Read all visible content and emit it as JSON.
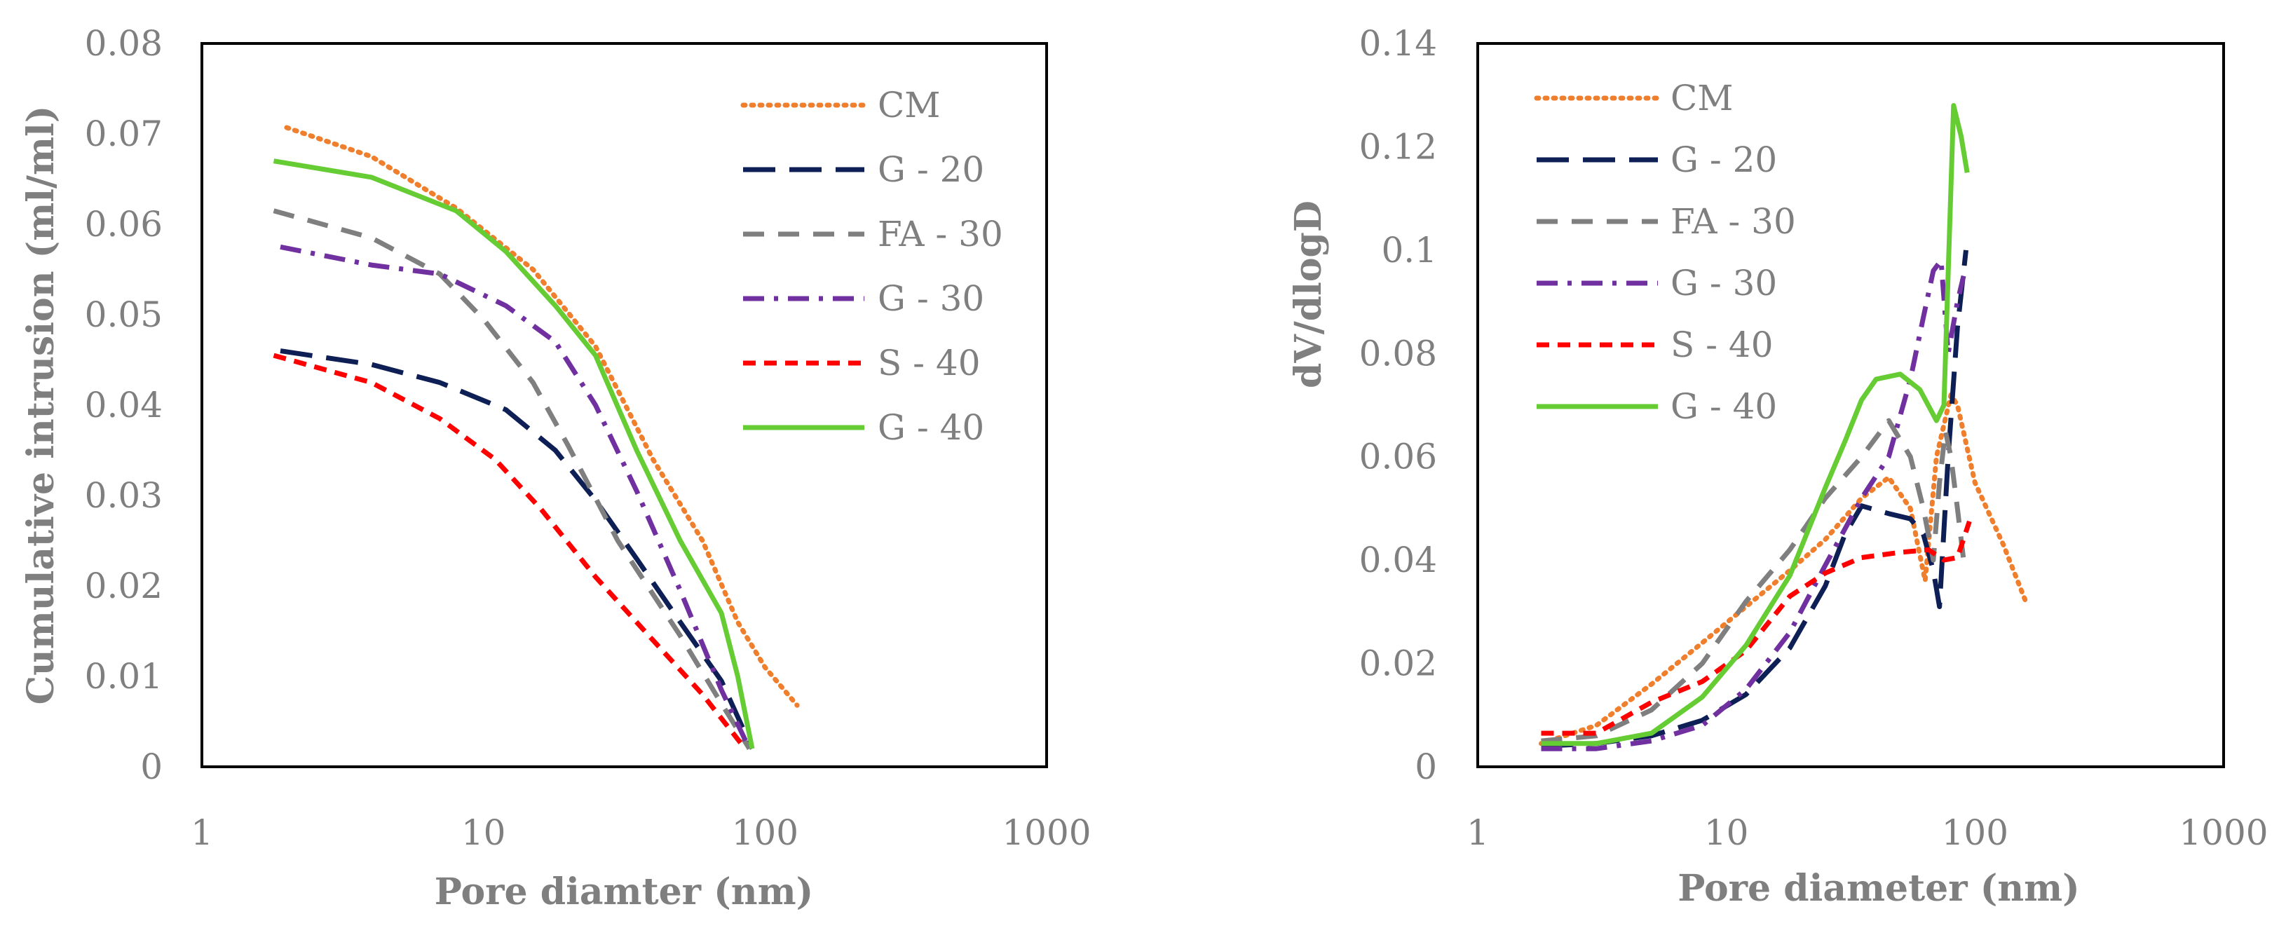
{
  "chart_data": [
    {
      "type": "line",
      "xscale": "log",
      "title": "",
      "xlabel": "Pore diamter (nm)",
      "ylabel": "Cumulative intrusion (ml/ml)",
      "xlim": [
        1,
        1000
      ],
      "ylim": [
        0,
        0.08
      ],
      "xticks": [
        1,
        10,
        100,
        1000
      ],
      "xtick_labels": [
        "1",
        "10",
        "100",
        "1000"
      ],
      "yticks": [
        0,
        0.01,
        0.02,
        0.03,
        0.04,
        0.05,
        0.06,
        0.07,
        0.08
      ],
      "ytick_labels": [
        "0",
        "0.01",
        "0.02",
        "0.03",
        "0.04",
        "0.05",
        "0.06",
        "0.07",
        "0.08"
      ],
      "legend_position": "top-right",
      "series": [
        {
          "name": "CM",
          "color": "#f07f2d",
          "style": "dotted",
          "points": [
            [
              2,
              0.0707
            ],
            [
              4,
              0.0675
            ],
            [
              8,
              0.0618
            ],
            [
              15,
              0.055
            ],
            [
              25,
              0.0465
            ],
            [
              40,
              0.034
            ],
            [
              60,
              0.025
            ],
            [
              80,
              0.016
            ],
            [
              100,
              0.011
            ],
            [
              130,
              0.0068
            ]
          ]
        },
        {
          "name": "G - 20",
          "color": "#0d1f55",
          "style": "long-dash",
          "points": [
            [
              1.9,
              0.046
            ],
            [
              4,
              0.0445
            ],
            [
              7,
              0.0425
            ],
            [
              12,
              0.0395
            ],
            [
              18,
              0.035
            ],
            [
              25,
              0.0295
            ],
            [
              35,
              0.023
            ],
            [
              50,
              0.016
            ],
            [
              70,
              0.0095
            ],
            [
              90,
              0.002
            ]
          ]
        },
        {
          "name": "FA - 30",
          "color": "#7f7f7f",
          "style": "dash",
          "points": [
            [
              1.8,
              0.0615
            ],
            [
              4,
              0.0585
            ],
            [
              7,
              0.0545
            ],
            [
              10,
              0.0495
            ],
            [
              15,
              0.0425
            ],
            [
              20,
              0.0355
            ],
            [
              30,
              0.025
            ],
            [
              50,
              0.0145
            ],
            [
              70,
              0.007
            ],
            [
              88,
              0.002
            ]
          ]
        },
        {
          "name": "G - 30",
          "color": "#7030a0",
          "style": "dash-dot",
          "points": [
            [
              1.9,
              0.0575
            ],
            [
              4,
              0.0555
            ],
            [
              7,
              0.0545
            ],
            [
              12,
              0.051
            ],
            [
              18,
              0.047
            ],
            [
              25,
              0.04
            ],
            [
              35,
              0.0305
            ],
            [
              50,
              0.0195
            ],
            [
              70,
              0.0085
            ],
            [
              88,
              0.002
            ]
          ]
        },
        {
          "name": "S - 40",
          "color": "#ff0000",
          "style": "short-dash",
          "points": [
            [
              1.8,
              0.0455
            ],
            [
              4,
              0.0425
            ],
            [
              7,
              0.0385
            ],
            [
              11,
              0.034
            ],
            [
              16,
              0.0285
            ],
            [
              25,
              0.021
            ],
            [
              40,
              0.014
            ],
            [
              60,
              0.008
            ],
            [
              85,
              0.002
            ]
          ]
        },
        {
          "name": "G - 40",
          "color": "#66cc33",
          "style": "solid",
          "points": [
            [
              1.8,
              0.067
            ],
            [
              4,
              0.0652
            ],
            [
              8,
              0.0615
            ],
            [
              12,
              0.057
            ],
            [
              18,
              0.051
            ],
            [
              25,
              0.0455
            ],
            [
              35,
              0.035
            ],
            [
              50,
              0.025
            ],
            [
              70,
              0.017
            ],
            [
              80,
              0.01
            ],
            [
              90,
              0.002
            ]
          ]
        }
      ]
    },
    {
      "type": "line",
      "xscale": "log",
      "title": "",
      "xlabel": "Pore diameter (nm)",
      "ylabel": "dV/dlogD",
      "xlim": [
        1,
        1000
      ],
      "ylim": [
        0,
        0.14
      ],
      "xticks": [
        1,
        10,
        100,
        1000
      ],
      "xtick_labels": [
        "1",
        "10",
        "100",
        "1000"
      ],
      "yticks": [
        0,
        0.02,
        0.04,
        0.06,
        0.08,
        0.1,
        0.12,
        0.14
      ],
      "ytick_labels": [
        "0",
        "0.02",
        "0.04",
        "0.06",
        "0.08",
        "0.1",
        "0.12",
        "0.14"
      ],
      "legend_position": "top-left",
      "series": [
        {
          "name": "CM",
          "color": "#f07f2d",
          "style": "dotted",
          "points": [
            [
              1.8,
              0.0045
            ],
            [
              3,
              0.008
            ],
            [
              5,
              0.016
            ],
            [
              8,
              0.024
            ],
            [
              12,
              0.031
            ],
            [
              18,
              0.038
            ],
            [
              25,
              0.044
            ],
            [
              35,
              0.052
            ],
            [
              45,
              0.056
            ],
            [
              55,
              0.05
            ],
            [
              63,
              0.036
            ],
            [
              70,
              0.06
            ],
            [
              80,
              0.072
            ],
            [
              85,
              0.07
            ],
            [
              100,
              0.055
            ],
            [
              130,
              0.043
            ],
            [
              160,
              0.032
            ]
          ]
        },
        {
          "name": "G - 20",
          "color": "#0d1f55",
          "style": "long-dash",
          "points": [
            [
              1.8,
              0.004
            ],
            [
              3,
              0.0045
            ],
            [
              5,
              0.006
            ],
            [
              8,
              0.009
            ],
            [
              12,
              0.014
            ],
            [
              18,
              0.023
            ],
            [
              25,
              0.035
            ],
            [
              30,
              0.045
            ],
            [
              35,
              0.0505
            ],
            [
              45,
              0.049
            ],
            [
              55,
              0.048
            ],
            [
              62,
              0.045
            ],
            [
              68,
              0.038
            ],
            [
              72,
              0.031
            ],
            [
              78,
              0.06
            ],
            [
              85,
              0.085
            ],
            [
              92,
              0.1
            ]
          ]
        },
        {
          "name": "FA - 30",
          "color": "#7f7f7f",
          "style": "dash",
          "points": [
            [
              1.8,
              0.005
            ],
            [
              3,
              0.006
            ],
            [
              5,
              0.011
            ],
            [
              8,
              0.02
            ],
            [
              12,
              0.032
            ],
            [
              18,
              0.042
            ],
            [
              25,
              0.052
            ],
            [
              35,
              0.06
            ],
            [
              45,
              0.067
            ],
            [
              55,
              0.06
            ],
            [
              62,
              0.05
            ],
            [
              68,
              0.04
            ],
            [
              72,
              0.055
            ],
            [
              76,
              0.065
            ],
            [
              80,
              0.06
            ],
            [
              85,
              0.05
            ],
            [
              90,
              0.04
            ]
          ]
        },
        {
          "name": "G - 30",
          "color": "#7030a0",
          "style": "dash-dot",
          "points": [
            [
              1.8,
              0.0035
            ],
            [
              3,
              0.0035
            ],
            [
              5,
              0.005
            ],
            [
              8,
              0.008
            ],
            [
              12,
              0.015
            ],
            [
              18,
              0.026
            ],
            [
              25,
              0.039
            ],
            [
              35,
              0.052
            ],
            [
              45,
              0.06
            ],
            [
              55,
              0.075
            ],
            [
              62,
              0.087
            ],
            [
              68,
              0.096
            ],
            [
              73,
              0.098
            ],
            [
              78,
              0.08
            ],
            [
              85,
              0.09
            ],
            [
              90,
              0.095
            ]
          ]
        },
        {
          "name": "S - 40",
          "color": "#ff0000",
          "style": "short-dash",
          "points": [
            [
              1.8,
              0.0065
            ],
            [
              3,
              0.0065
            ],
            [
              5,
              0.0125
            ],
            [
              8,
              0.0165
            ],
            [
              12,
              0.0225
            ],
            [
              18,
              0.033
            ],
            [
              25,
              0.0375
            ],
            [
              35,
              0.0405
            ],
            [
              50,
              0.0415
            ],
            [
              65,
              0.042
            ],
            [
              75,
              0.04
            ],
            [
              85,
              0.0405
            ],
            [
              95,
              0.0475
            ]
          ]
        },
        {
          "name": "G - 40",
          "color": "#66cc33",
          "style": "solid",
          "points": [
            [
              1.8,
              0.0045
            ],
            [
              3,
              0.0045
            ],
            [
              5,
              0.0065
            ],
            [
              8,
              0.0135
            ],
            [
              12,
              0.0235
            ],
            [
              18,
              0.037
            ],
            [
              25,
              0.054
            ],
            [
              30,
              0.063
            ],
            [
              35,
              0.071
            ],
            [
              40,
              0.075
            ],
            [
              50,
              0.076
            ],
            [
              60,
              0.073
            ],
            [
              70,
              0.067
            ],
            [
              75,
              0.07
            ],
            [
              82,
              0.128
            ],
            [
              88,
              0.122
            ],
            [
              93,
              0.115
            ]
          ]
        }
      ]
    }
  ]
}
